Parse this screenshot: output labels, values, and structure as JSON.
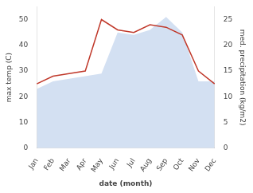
{
  "chart_data": {
    "type": "line",
    "categories": [
      "Jan",
      "Feb",
      "Mar",
      "Apr",
      "May",
      "Jun",
      "Jul",
      "Aug",
      "Sep",
      "Oct",
      "Nov",
      "Dec"
    ],
    "series": [
      {
        "type": "area",
        "color": "#aec6e8",
        "values": [
          23,
          26,
          27,
          28,
          29,
          45,
          44,
          46,
          51,
          45,
          26,
          26
        ]
      },
      {
        "type": "line",
        "color": "#c0392b",
        "values": [
          25,
          28,
          29,
          30,
          50,
          46,
          45,
          48,
          47,
          44,
          30,
          25
        ]
      }
    ],
    "xlabel": "date (month)",
    "ylabel": "max temp (C)",
    "y2label": "med. precipitation (kg/m2)",
    "ylim": [
      0,
      55
    ],
    "yticks": [
      0,
      10,
      20,
      30,
      40,
      50
    ],
    "y2lim": [
      0,
      27.5
    ],
    "y2ticks": [
      0,
      5,
      10,
      15,
      20,
      25
    ],
    "grid": false
  }
}
